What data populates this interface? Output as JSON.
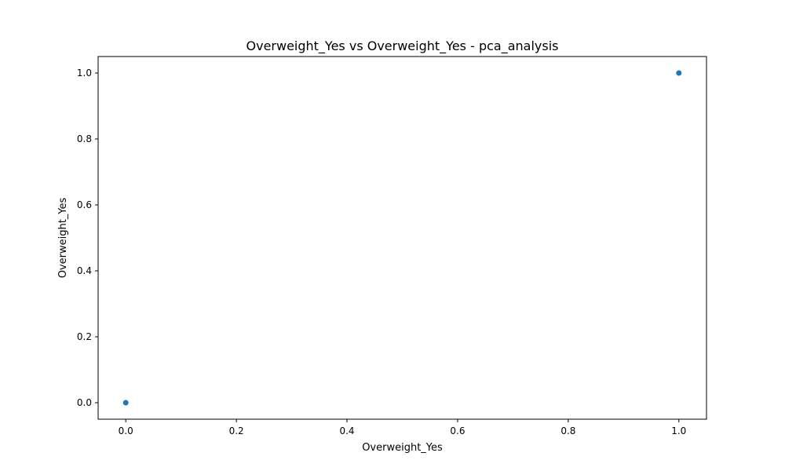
{
  "chart_data": {
    "type": "scatter",
    "title": "Overweight_Yes vs Overweight_Yes - pca_analysis",
    "xlabel": "Overweight_Yes",
    "ylabel": "Overweight_Yes",
    "xlim": [
      -0.05,
      1.05
    ],
    "ylim": [
      -0.05,
      1.05
    ],
    "xticks": [
      0.0,
      0.2,
      0.4,
      0.6,
      0.8,
      1.0
    ],
    "yticks": [
      0.0,
      0.2,
      0.4,
      0.6,
      0.8,
      1.0
    ],
    "xtick_labels": [
      "0.0",
      "0.2",
      "0.4",
      "0.6",
      "0.8",
      "1.0"
    ],
    "ytick_labels": [
      "0.0",
      "0.2",
      "0.4",
      "0.6",
      "0.8",
      "1.0"
    ],
    "grid": false,
    "legend": "none",
    "point_color": "#1f77b4",
    "points": [
      {
        "x": 0.0,
        "y": 0.0
      },
      {
        "x": 1.0,
        "y": 1.0
      }
    ]
  }
}
